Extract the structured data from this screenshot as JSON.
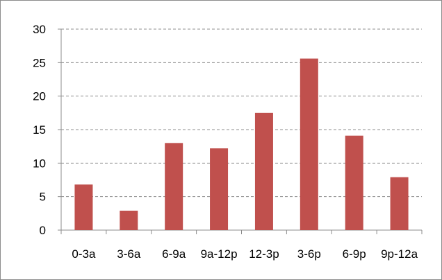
{
  "chart_data": {
    "type": "bar",
    "title": "",
    "xlabel": "",
    "ylabel": "",
    "categories": [
      "0-3a",
      "3-6a",
      "6-9a",
      "9a-12p",
      "12-3p",
      "3-6p",
      "6-9p",
      "9p-12a"
    ],
    "values": [
      6.8,
      2.9,
      13.0,
      12.2,
      17.5,
      25.6,
      14.1,
      7.9
    ],
    "ylim": [
      0,
      30
    ],
    "yticks": [
      0,
      5,
      10,
      15,
      20,
      25,
      30
    ],
    "grid": true,
    "grid_style": "dashed",
    "legend": "none",
    "colors": {
      "bar": "#c0504d",
      "grid": "#8c8c8c",
      "axis": "#8c8c8c",
      "border": "#8c8c8c"
    }
  }
}
